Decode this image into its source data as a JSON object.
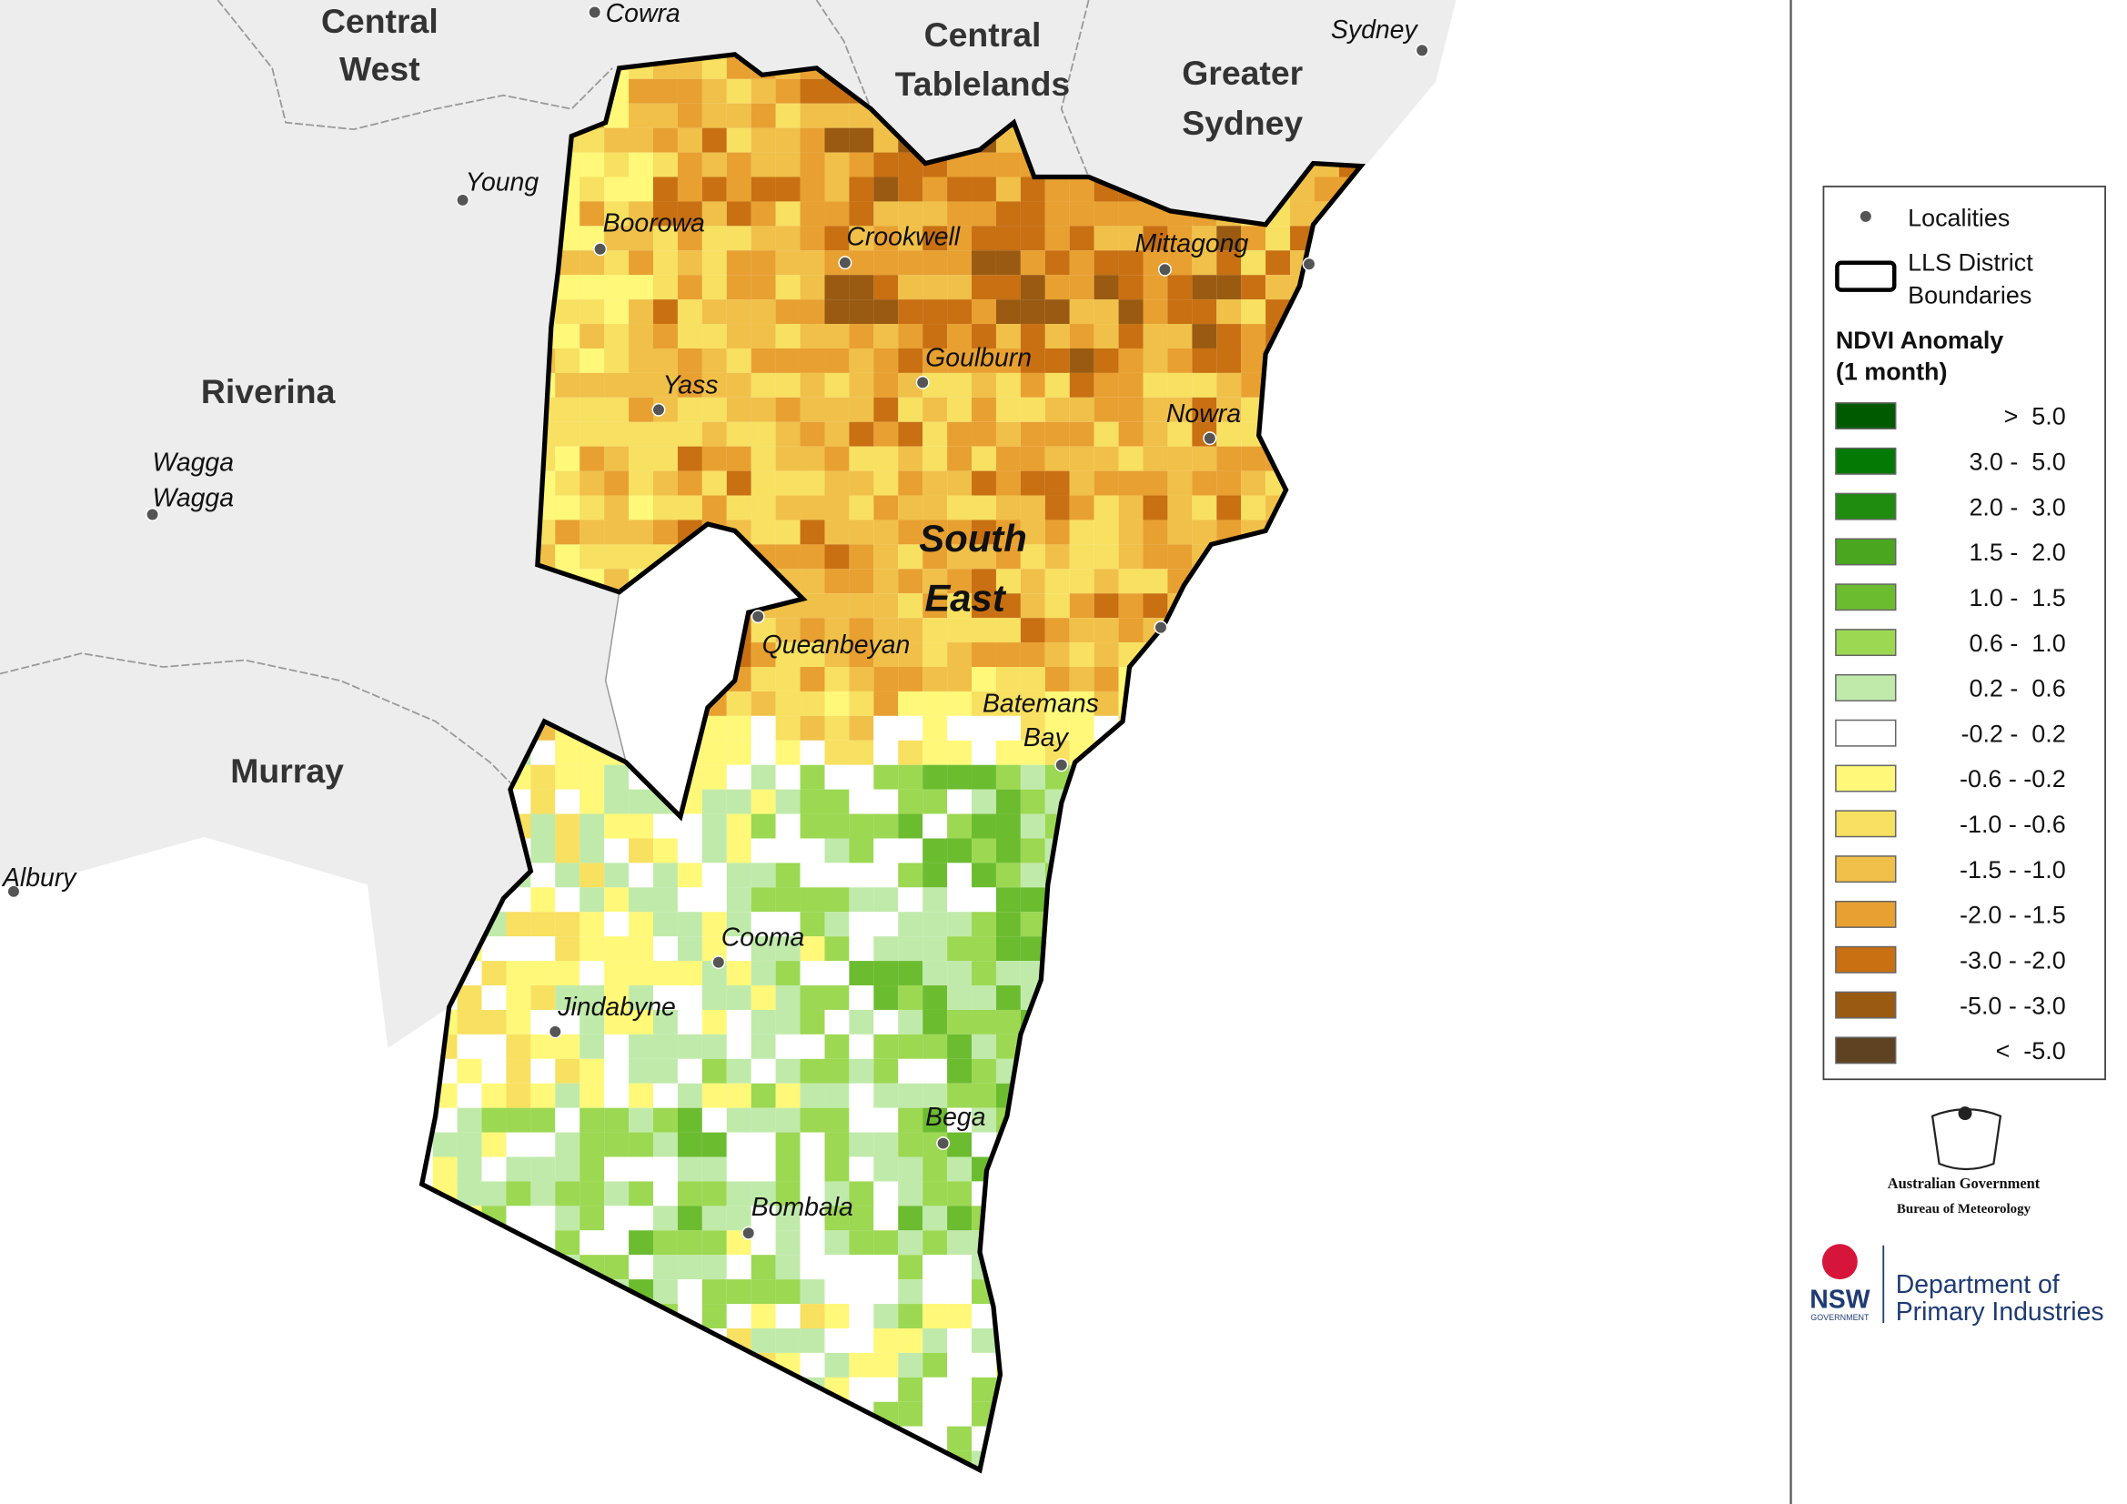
{
  "map": {
    "districts": [
      {
        "lines": [
          "Central",
          "West"
        ]
      },
      {
        "lines": [
          "Central",
          "Tablelands"
        ]
      },
      {
        "lines": [
          "Greater",
          "Sydney"
        ]
      },
      {
        "lines": [
          "Riverina"
        ]
      },
      {
        "lines": [
          "Murray"
        ]
      },
      {
        "lines": [
          "South",
          "East"
        ]
      }
    ],
    "localities": [
      {
        "lines": [
          "Cowra"
        ]
      },
      {
        "lines": [
          "Sydney"
        ]
      },
      {
        "lines": [
          "Young"
        ]
      },
      {
        "lines": [
          "Boorowa"
        ]
      },
      {
        "lines": [
          "Crookwell"
        ]
      },
      {
        "lines": [
          "Mittagong"
        ]
      },
      {
        "lines": [
          "Goulburn"
        ]
      },
      {
        "lines": [
          "Yass"
        ]
      },
      {
        "lines": [
          "Nowra"
        ]
      },
      {
        "lines": [
          "Wagga",
          "Wagga"
        ]
      },
      {
        "lines": [
          "Queanbeyan"
        ]
      },
      {
        "lines": [
          "Batemans",
          "Bay"
        ]
      },
      {
        "lines": [
          "Albury"
        ]
      },
      {
        "lines": [
          "Cooma"
        ]
      },
      {
        "lines": [
          "Jindabyne"
        ]
      },
      {
        "lines": [
          "Bega"
        ]
      },
      {
        "lines": [
          "Bombala"
        ]
      }
    ]
  },
  "legend": {
    "localities_label": "Localities",
    "boundary_lines": [
      "LLS District",
      "Boundaries"
    ],
    "title_lines": [
      "NDVI Anomaly",
      "(1 month)"
    ],
    "classes": [
      {
        "label": ">  5.0",
        "color": "#005a00"
      },
      {
        "label": "3.0 -  5.0",
        "color": "#037a03"
      },
      {
        "label": "2.0 -  3.0",
        "color": "#1f8c10"
      },
      {
        "label": "1.5 -  2.0",
        "color": "#4aa61e"
      },
      {
        "label": "1.0 -  1.5",
        "color": "#6cbc30"
      },
      {
        "label": "0.6 -  1.0",
        "color": "#9cd852"
      },
      {
        "label": "0.2 -  0.6",
        "color": "#c0eaaa"
      },
      {
        "label": "-0.2 -  0.2",
        "color": "#ffffff"
      },
      {
        "label": "-0.6 - -0.2",
        "color": "#fff878"
      },
      {
        "label": "-1.0 - -0.6",
        "color": "#f8e060"
      },
      {
        "label": "-1.5 - -1.0",
        "color": "#f0c048"
      },
      {
        "label": "-2.0 - -1.5",
        "color": "#e8a030"
      },
      {
        "label": "-3.0 - -2.0",
        "color": "#c87012"
      },
      {
        "label": "-5.0 - -3.0",
        "color": "#9a5a12"
      },
      {
        "label": "<  -5.0",
        "color": "#5e4222"
      }
    ]
  },
  "logos": {
    "bom_lines": [
      "Australian Government",
      "Bureau of Meteorology"
    ],
    "nsw": "NSW",
    "nsw_sub": "GOVERNMENT",
    "dpi_lines": [
      "Department of",
      "Primary Industries"
    ]
  }
}
